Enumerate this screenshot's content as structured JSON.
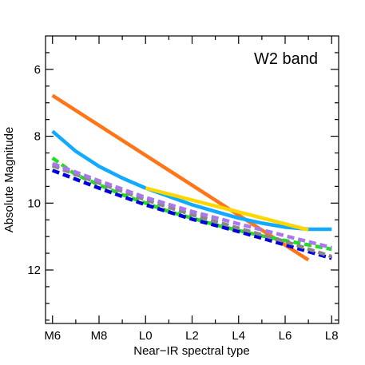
{
  "chart_data": {
    "type": "line",
    "title": "W2 band",
    "xlabel": "Near−IR spectral type",
    "ylabel": "Absolute Magnitude",
    "xlim": [
      5.7,
      18.3
    ],
    "ylim": [
      13.6,
      5.0
    ],
    "y_inverted": true,
    "grid": false,
    "legend": "none",
    "x_tick_values": [
      6,
      8,
      10,
      12,
      14,
      16,
      18
    ],
    "x_tick_labels": [
      "M6",
      "M8",
      "L0",
      "L2",
      "L4",
      "L6",
      "L8"
    ],
    "x_minor_ticks": [
      7,
      9,
      11,
      13,
      15,
      17
    ],
    "y_tick_values": [
      6,
      8,
      10,
      12
    ],
    "y_tick_labels": [
      "6",
      "8",
      "10",
      "12"
    ],
    "y_minor_ticks": [
      5.5,
      6.5,
      7,
      7.5,
      8.5,
      9,
      9.5,
      10.5,
      11,
      11.5,
      12.5,
      13,
      13.5
    ],
    "series": [
      {
        "color": "#ff7518",
        "style": "solid",
        "x": [
          6,
          17
        ],
        "y": [
          6.78,
          11.7
        ]
      },
      {
        "color": "#12aaff",
        "style": "solid",
        "x": [
          6,
          7,
          8,
          9,
          10,
          11,
          12,
          13,
          14,
          15,
          16,
          17,
          18
        ],
        "y": [
          7.85,
          8.45,
          8.9,
          9.25,
          9.55,
          9.8,
          10.05,
          10.25,
          10.45,
          10.6,
          10.72,
          10.78,
          10.78
        ]
      },
      {
        "color": "#ffd700",
        "style": "solid",
        "x": [
          10,
          17
        ],
        "y": [
          9.55,
          10.8
        ]
      },
      {
        "color": "#22dd22",
        "style": "dashed",
        "x": [
          6,
          7,
          8,
          9,
          10,
          11,
          12,
          13,
          14,
          15,
          16,
          17,
          18
        ],
        "y": [
          8.65,
          9.15,
          9.45,
          9.75,
          10.0,
          10.25,
          10.45,
          10.65,
          10.82,
          10.98,
          11.12,
          11.25,
          11.38
        ]
      },
      {
        "color": "#0000dd",
        "style": "dashed",
        "x": [
          6,
          8,
          10,
          12,
          14,
          16,
          18
        ],
        "y": [
          9.02,
          9.55,
          10.05,
          10.48,
          10.85,
          11.25,
          11.65
        ]
      },
      {
        "color": "#888888",
        "style": "dashed",
        "x": [
          6,
          8,
          10,
          12,
          14,
          16,
          18
        ],
        "y": [
          8.88,
          9.4,
          9.9,
          10.35,
          10.75,
          11.15,
          11.6
        ]
      },
      {
        "color": "#aa77ee",
        "style": "dashed",
        "x": [
          6,
          8,
          10,
          12,
          14,
          16,
          18
        ],
        "y": [
          8.82,
          9.33,
          9.83,
          10.25,
          10.62,
          10.98,
          11.33
        ]
      }
    ]
  }
}
